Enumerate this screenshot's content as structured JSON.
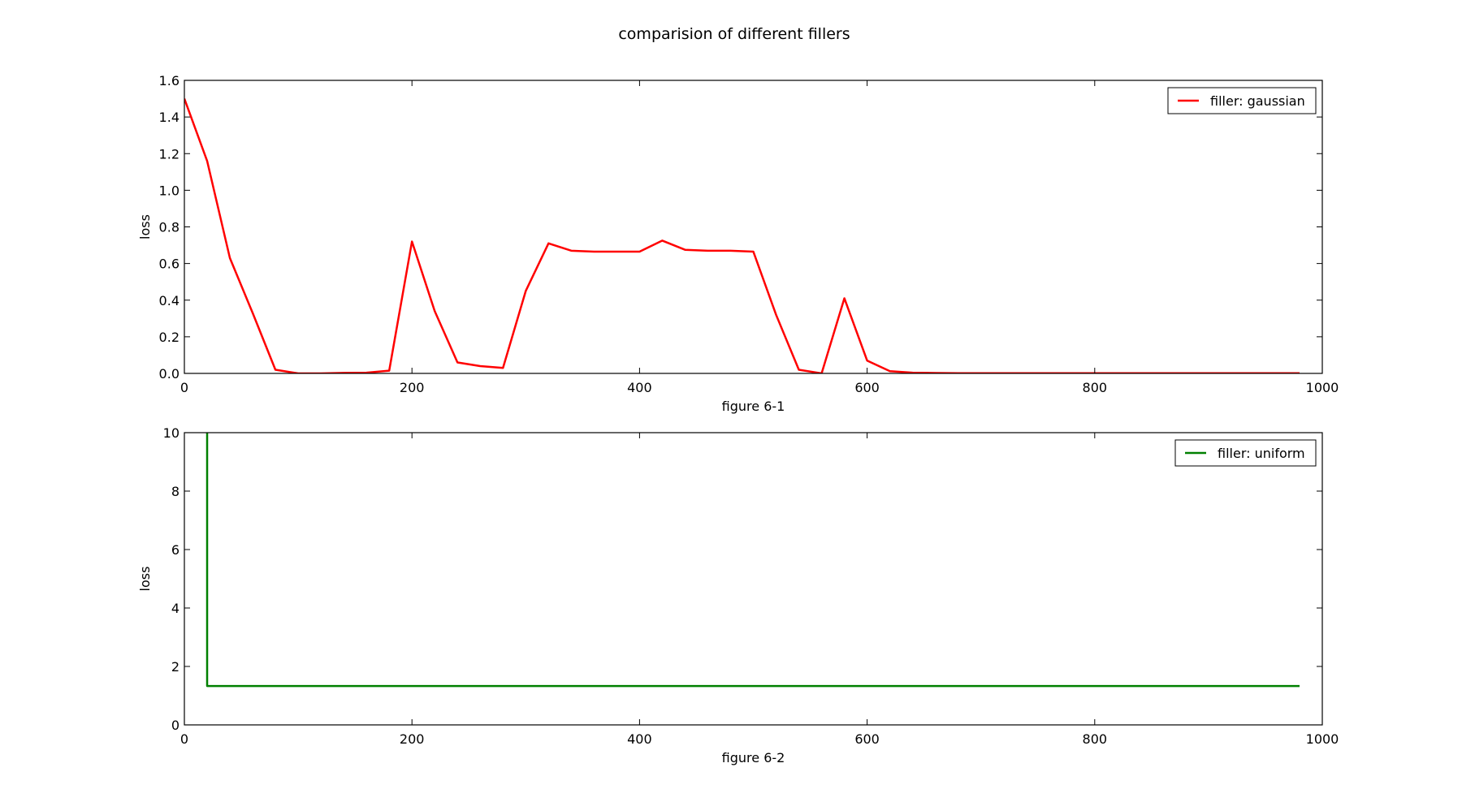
{
  "title": "comparision of different fillers",
  "chart_data": [
    {
      "type": "line",
      "xlabel": "figure 6-1",
      "ylabel": "loss",
      "xlim": [
        0,
        1000
      ],
      "ylim": [
        0,
        1.6
      ],
      "xticks": [
        0,
        200,
        400,
        600,
        800,
        1000
      ],
      "yticks": [
        0.0,
        0.2,
        0.4,
        0.6,
        0.8,
        1.0,
        1.2,
        1.4,
        1.6
      ],
      "xtick_labels": [
        "0",
        "200",
        "400",
        "600",
        "800",
        "1000"
      ],
      "ytick_labels": [
        "0.0",
        "0.2",
        "0.4",
        "0.6",
        "0.8",
        "1.0",
        "1.2",
        "1.4",
        "1.6"
      ],
      "grid": false,
      "legend": "top-right",
      "series": [
        {
          "name": "filler: gaussian",
          "color": "#ff0000",
          "x": [
            0,
            20,
            40,
            60,
            80,
            100,
            120,
            140,
            160,
            180,
            200,
            220,
            240,
            260,
            280,
            300,
            320,
            340,
            360,
            380,
            400,
            420,
            440,
            460,
            480,
            500,
            520,
            540,
            560,
            580,
            600,
            620,
            640,
            660,
            680,
            700,
            720,
            740,
            760,
            780,
            800,
            820,
            840,
            860,
            880,
            900,
            920,
            940,
            960,
            980
          ],
          "y": [
            1.5,
            1.16,
            0.63,
            0.33,
            0.02,
            0.0,
            0.0,
            0.003,
            0.004,
            0.015,
            0.72,
            0.34,
            0.06,
            0.04,
            0.03,
            0.45,
            0.71,
            0.67,
            0.665,
            0.665,
            0.665,
            0.725,
            0.675,
            0.67,
            0.67,
            0.665,
            0.32,
            0.02,
            0.0,
            0.41,
            0.07,
            0.012,
            0.004,
            0.002,
            0.001,
            0.001,
            0.001,
            0.001,
            0.001,
            0.001,
            0.001,
            0.001,
            0.001,
            0.001,
            0.001,
            0.001,
            0.001,
            0.001,
            0.001,
            0.001
          ]
        }
      ]
    },
    {
      "type": "line",
      "xlabel": "figure 6-2",
      "ylabel": "loss",
      "xlim": [
        0,
        1000
      ],
      "ylim": [
        0,
        10
      ],
      "xticks": [
        0,
        200,
        400,
        600,
        800,
        1000
      ],
      "yticks": [
        0,
        2,
        4,
        6,
        8,
        10
      ],
      "xtick_labels": [
        "0",
        "200",
        "400",
        "600",
        "800",
        "1000"
      ],
      "ytick_labels": [
        "0",
        "2",
        "4",
        "6",
        "8",
        "10"
      ],
      "grid": false,
      "legend": "top-right",
      "series": [
        {
          "name": "filler: uniform",
          "color": "#008000",
          "x": [
            20,
            20,
            40,
            100,
            200,
            300,
            400,
            500,
            600,
            700,
            800,
            900,
            980
          ],
          "y": [
            10,
            1.33,
            1.33,
            1.33,
            1.33,
            1.33,
            1.33,
            1.33,
            1.33,
            1.33,
            1.33,
            1.33,
            1.33
          ]
        }
      ]
    }
  ]
}
